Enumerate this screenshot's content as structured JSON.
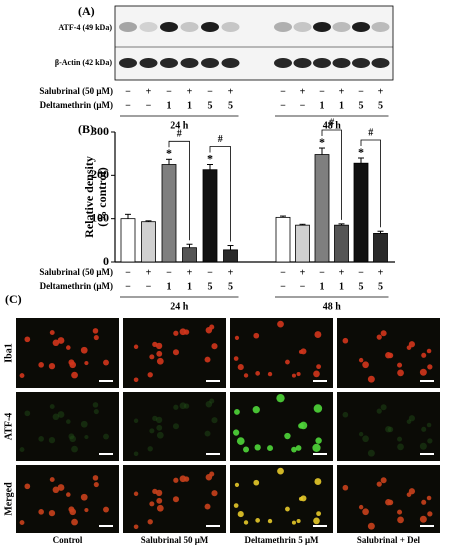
{
  "panel_a": {
    "label": "(A)",
    "bands": [
      "ATF-4 (49 kDa)",
      "β-Actin (42 kDa)"
    ],
    "rows": [
      {
        "name": "Salubrinal (50 μM)",
        "cells": [
          "−",
          "+",
          "−",
          "+",
          "−",
          "+",
          "−",
          "+",
          "−",
          "+",
          "−",
          "+"
        ]
      },
      {
        "name": "Deltamethrin (μM)",
        "cells": [
          "−",
          "−",
          "1",
          "1",
          "5",
          "5",
          "−",
          "−",
          "1",
          "1",
          "5",
          "5"
        ]
      }
    ],
    "groups": [
      "24 h",
      "48 h"
    ]
  },
  "chart_data": {
    "type": "bar",
    "label": "(B)",
    "ylabel": [
      "Relative density",
      "(% control)"
    ],
    "categories": [
      null,
      null,
      null,
      null,
      null,
      null,
      null,
      null,
      null,
      null,
      null,
      null
    ],
    "values": [
      100,
      93,
      225,
      33,
      213,
      28,
      103,
      85,
      248,
      85,
      228,
      66
    ],
    "errors": [
      10,
      2,
      12,
      8,
      12,
      10,
      3,
      2,
      15,
      3,
      12,
      5
    ],
    "colors": [
      "#ffffff",
      "#d0d0d0",
      "#7f7f7f",
      "#555555",
      "#111111",
      "#2a2a2a",
      "#ffffff",
      "#d0d0d0",
      "#7f7f7f",
      "#555555",
      "#111111",
      "#2a2a2a"
    ],
    "markers": [
      null,
      null,
      "*",
      null,
      "*",
      null,
      null,
      null,
      "*",
      null,
      "*",
      null
    ],
    "brackets": [
      null,
      null,
      "#",
      null,
      "#",
      null,
      null,
      null,
      "#",
      null,
      "#",
      null
    ],
    "ylim": [
      0,
      300
    ],
    "yticks": [
      0,
      100,
      200,
      300
    ],
    "conditions": [
      {
        "name": "Salubrinal (50 μM)",
        "cells": [
          "−",
          "+",
          "−",
          "+",
          "−",
          "+",
          "−",
          "+",
          "−",
          "+",
          "−",
          "+"
        ]
      },
      {
        "name": "Deltamethrin (μM)",
        "cells": [
          "−",
          "−",
          "1",
          "1",
          "5",
          "5",
          "−",
          "−",
          "1",
          "1",
          "5",
          "5"
        ]
      }
    ],
    "groups": [
      "24 h",
      "48 h"
    ]
  },
  "panel_c": {
    "label": "(C)",
    "rows": [
      "Iba1",
      "ATF-4",
      "Merged"
    ],
    "columns": [
      "Control",
      "Salubrinal 50 μM",
      "Deltamethrin 5 μM",
      "Salubrinal + Del"
    ]
  }
}
